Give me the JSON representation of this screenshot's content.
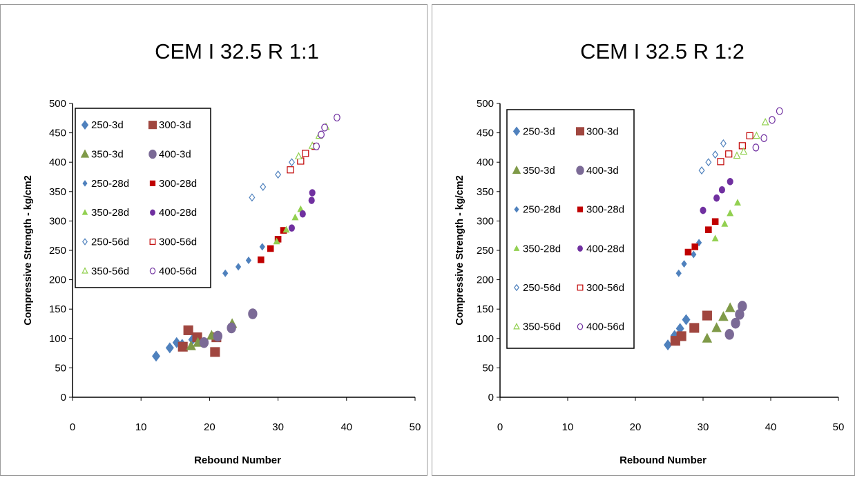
{
  "chart_data": [
    {
      "type": "scatter",
      "title": "CEM I 32.5 R 1:1",
      "xlabel": "Rebound Number",
      "ylabel": "Compressive Strength - kg/cm2",
      "xlim": [
        0,
        50
      ],
      "ylim": [
        0,
        500
      ],
      "xticks": [
        0,
        10,
        20,
        30,
        40,
        50
      ],
      "yticks": [
        0,
        50,
        100,
        150,
        200,
        250,
        300,
        350,
        400,
        450,
        500
      ],
      "grid": false,
      "legend_position": "top-left",
      "series": [
        {
          "name": "250-3d",
          "marker": "diamond",
          "size": "large",
          "fill": true,
          "color": "#4F81BD",
          "points": [
            [
              12.2,
              70
            ],
            [
              14.2,
              84
            ],
            [
              15.2,
              93
            ],
            [
              16.0,
              90
            ],
            [
              17.5,
              98
            ]
          ]
        },
        {
          "name": "300-3d",
          "marker": "square",
          "size": "large",
          "fill": true,
          "color": "#A0463F",
          "points": [
            [
              16.1,
              86
            ],
            [
              16.9,
              114
            ],
            [
              18.2,
              102
            ],
            [
              20.8,
              77
            ],
            [
              21.0,
              102
            ]
          ]
        },
        {
          "name": "350-3d",
          "marker": "triangle",
          "size": "large",
          "fill": true,
          "color": "#7F9A48",
          "points": [
            [
              17.3,
              87
            ],
            [
              18.3,
              93
            ],
            [
              20.3,
              105
            ],
            [
              23.3,
              125
            ]
          ]
        },
        {
          "name": "400-3d",
          "marker": "circle",
          "size": "large",
          "fill": true,
          "color": "#7B6A96",
          "points": [
            [
              19.2,
              93
            ],
            [
              21.2,
              104
            ],
            [
              23.2,
              118
            ],
            [
              26.3,
              142
            ]
          ]
        },
        {
          "name": "250-28d",
          "marker": "diamond",
          "size": "small",
          "fill": true,
          "color": "#4F81BD",
          "points": [
            [
              22.3,
              211
            ],
            [
              24.2,
              222
            ],
            [
              25.7,
              233
            ],
            [
              27.7,
              256
            ]
          ]
        },
        {
          "name": "300-28d",
          "marker": "square",
          "size": "small",
          "fill": true,
          "color": "#C00000",
          "points": [
            [
              27.5,
              234
            ],
            [
              28.9,
              253
            ],
            [
              30.0,
              269
            ],
            [
              30.8,
              284
            ]
          ]
        },
        {
          "name": "350-28d",
          "marker": "triangle",
          "size": "small",
          "fill": true,
          "color": "#92D050",
          "points": [
            [
              29.8,
              265
            ],
            [
              31.2,
              285
            ],
            [
              32.5,
              306
            ],
            [
              33.3,
              320
            ]
          ]
        },
        {
          "name": "400-28d",
          "marker": "circle",
          "size": "small",
          "fill": true,
          "color": "#7030A0",
          "points": [
            [
              32.0,
              288
            ],
            [
              33.6,
              312
            ],
            [
              34.9,
              335
            ],
            [
              35.0,
              348
            ]
          ]
        },
        {
          "name": "250-56d",
          "marker": "diamond",
          "size": "small",
          "fill": false,
          "color": "#4F81BD",
          "points": [
            [
              26.2,
              340
            ],
            [
              27.8,
              358
            ],
            [
              30.0,
              379
            ],
            [
              32.0,
              400
            ]
          ]
        },
        {
          "name": "300-56d",
          "marker": "square",
          "size": "small",
          "fill": false,
          "color": "#C00000",
          "points": [
            [
              31.8,
              387
            ],
            [
              33.3,
              402
            ],
            [
              34.0,
              415
            ],
            [
              35.4,
              427
            ]
          ]
        },
        {
          "name": "350-56d",
          "marker": "triangle",
          "size": "small",
          "fill": false,
          "color": "#92D050",
          "points": [
            [
              33.0,
              410
            ],
            [
              35.0,
              428
            ],
            [
              36.0,
              445
            ],
            [
              37.0,
              460
            ]
          ]
        },
        {
          "name": "400-56d",
          "marker": "circle",
          "size": "small",
          "fill": false,
          "color": "#7030A0",
          "points": [
            [
              35.6,
              427
            ],
            [
              36.3,
              447
            ],
            [
              36.8,
              459
            ],
            [
              38.6,
              476
            ]
          ]
        }
      ]
    },
    {
      "type": "scatter",
      "title": "CEM I 32.5 R 1:2",
      "xlabel": "Rebound Number",
      "ylabel": "Compressive Strength - kg/cm2",
      "xlim": [
        0,
        50
      ],
      "ylim": [
        0,
        500
      ],
      "xticks": [
        0,
        10,
        20,
        30,
        40,
        50
      ],
      "yticks": [
        0,
        50,
        100,
        150,
        200,
        250,
        300,
        350,
        400,
        450,
        500
      ],
      "grid": false,
      "legend_position": "top-left",
      "series": [
        {
          "name": "250-3d",
          "marker": "diamond",
          "size": "large",
          "fill": true,
          "color": "#4F81BD",
          "points": [
            [
              24.8,
              89
            ],
            [
              25.8,
              105
            ],
            [
              26.6,
              117
            ],
            [
              27.5,
              132
            ]
          ]
        },
        {
          "name": "300-3d",
          "marker": "square",
          "size": "large",
          "fill": true,
          "color": "#A0463F",
          "points": [
            [
              25.9,
              96
            ],
            [
              26.8,
              104
            ],
            [
              28.7,
              118
            ],
            [
              30.6,
              139
            ]
          ]
        },
        {
          "name": "350-3d",
          "marker": "triangle",
          "size": "large",
          "fill": true,
          "color": "#7F9A48",
          "points": [
            [
              30.6,
              100
            ],
            [
              32.0,
              118
            ],
            [
              33.0,
              137
            ],
            [
              34.0,
              152
            ]
          ]
        },
        {
          "name": "400-3d",
          "marker": "circle",
          "size": "large",
          "fill": true,
          "color": "#7B6A96",
          "points": [
            [
              33.9,
              107
            ],
            [
              34.8,
              126
            ],
            [
              35.4,
              141
            ],
            [
              35.8,
              155
            ]
          ]
        },
        {
          "name": "250-28d",
          "marker": "diamond",
          "size": "small",
          "fill": true,
          "color": "#4F81BD",
          "points": [
            [
              26.4,
              211
            ],
            [
              27.2,
              227
            ],
            [
              28.6,
              243
            ],
            [
              29.4,
              263
            ]
          ]
        },
        {
          "name": "300-28d",
          "marker": "square",
          "size": "small",
          "fill": true,
          "color": "#C00000",
          "points": [
            [
              27.8,
              247
            ],
            [
              28.8,
              256
            ],
            [
              30.8,
              285
            ],
            [
              31.8,
              299
            ]
          ]
        },
        {
          "name": "350-28d",
          "marker": "triangle",
          "size": "small",
          "fill": true,
          "color": "#92D050",
          "points": [
            [
              31.8,
              270
            ],
            [
              33.2,
              295
            ],
            [
              34.0,
              313
            ],
            [
              35.1,
              331
            ]
          ]
        },
        {
          "name": "400-28d",
          "marker": "circle",
          "size": "small",
          "fill": true,
          "color": "#7030A0",
          "points": [
            [
              30.0,
              318
            ],
            [
              32.0,
              339
            ],
            [
              32.8,
              353
            ],
            [
              34.0,
              367
            ]
          ]
        },
        {
          "name": "250-56d",
          "marker": "diamond",
          "size": "small",
          "fill": false,
          "color": "#4F81BD",
          "points": [
            [
              29.8,
              386
            ],
            [
              30.8,
              400
            ],
            [
              31.8,
              413
            ],
            [
              33.0,
              432
            ]
          ]
        },
        {
          "name": "300-56d",
          "marker": "square",
          "size": "small",
          "fill": false,
          "color": "#C00000",
          "points": [
            [
              32.6,
              401
            ],
            [
              33.8,
              414
            ],
            [
              35.8,
              428
            ],
            [
              36.9,
              445
            ]
          ]
        },
        {
          "name": "350-56d",
          "marker": "triangle",
          "size": "small",
          "fill": false,
          "color": "#92D050",
          "points": [
            [
              35.0,
              411
            ],
            [
              36.0,
              418
            ],
            [
              37.9,
              445
            ],
            [
              39.2,
              468
            ]
          ]
        },
        {
          "name": "400-56d",
          "marker": "circle",
          "size": "small",
          "fill": false,
          "color": "#7030A0",
          "points": [
            [
              37.8,
              425
            ],
            [
              39.0,
              441
            ],
            [
              40.2,
              472
            ],
            [
              41.3,
              487
            ]
          ]
        }
      ]
    }
  ]
}
